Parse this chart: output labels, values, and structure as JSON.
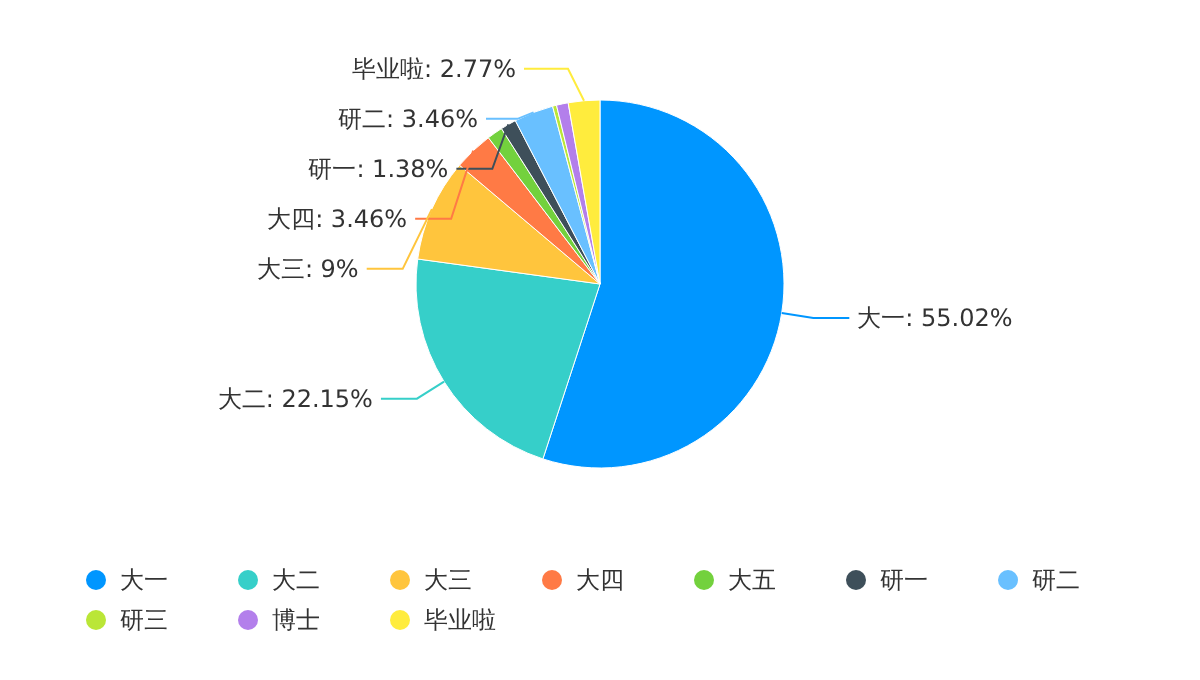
{
  "chart_data": {
    "type": "pie",
    "categories": [
      "大一",
      "大二",
      "大三",
      "大四",
      "大五",
      "研一",
      "研二",
      "研三",
      "博士",
      "毕业啦"
    ],
    "values": [
      55.02,
      22.15,
      9,
      3.46,
      1.38,
      1.38,
      3.46,
      0.35,
      1.03,
      2.77
    ],
    "value_labels": [
      "大一: 55.02%",
      "大二: 22.15%",
      "大三: 9%",
      "大四: 3.46%",
      null,
      "研一: 1.38%",
      "研二: 3.46%",
      null,
      null,
      "毕业啦: 2.77%"
    ],
    "colors": [
      "#0096ff",
      "#36cfc9",
      "#ffc53d",
      "#ff7a45",
      "#73d13d",
      "#3e4f5a",
      "#69c0ff",
      "#bae637",
      "#b37feb",
      "#ffec3d"
    ],
    "legend": "bottom"
  }
}
